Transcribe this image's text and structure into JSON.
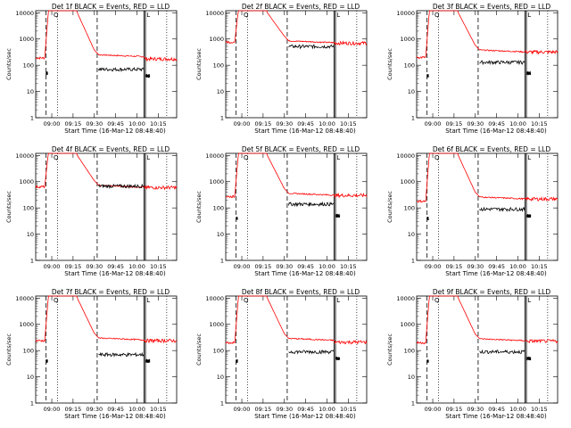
{
  "chart_data": {
    "type": "line",
    "shared": {
      "ylabel": "Counts/sec",
      "xlabel": "Start Time (16-Mar-12 08:48:40)",
      "x_ticks": [
        "09:00",
        "09:15",
        "09:30",
        "09:45",
        "10:00",
        "10:15"
      ],
      "y_ticks": [
        "1",
        "10",
        "100",
        "1000",
        "10000"
      ],
      "yscale": "log",
      "ylim": [
        1,
        12000
      ],
      "xlim": [
        "08:48:40",
        "10:28"
      ],
      "colors": {
        "events": "#000000",
        "lld": "#ff0000"
      },
      "markers": {
        "ql": "Q",
        "ix": "L"
      }
    },
    "panels": [
      {
        "title": "Det 1f BLACK = Events, RED = LLD",
        "series": [
          {
            "values": {
              "base_red": 190,
              "after_red": 250,
              "end_red": 175,
              "black_pre": 50,
              "black_after": 70,
              "black_end": 40
            }
          }
        ]
      },
      {
        "title": "Det 2f BLACK = Events, RED = LLD",
        "series": [
          {
            "values": {
              "base_red": 760,
              "after_red": 850,
              "end_red": 700,
              "black_pre": 0,
              "black_after": 520,
              "black_end": 0
            }
          }
        ]
      },
      {
        "title": "Det 3f BLACK = Events, RED = LLD",
        "series": [
          {
            "values": {
              "base_red": 200,
              "after_red": 380,
              "end_red": 320,
              "black_pre": 40,
              "black_after": 130,
              "black_end": 50
            }
          }
        ]
      },
      {
        "title": "Det 4f BLACK = Events, RED = LLD",
        "series": [
          {
            "values": {
              "base_red": 640,
              "after_red": 720,
              "end_red": 600,
              "black_pre": 0,
              "black_after": 680,
              "black_end": 0
            }
          }
        ]
      },
      {
        "title": "Det 5f BLACK = Events, RED = LLD",
        "series": [
          {
            "values": {
              "base_red": 270,
              "after_red": 360,
              "end_red": 300,
              "black_pre": 40,
              "black_after": 140,
              "black_end": 50
            }
          }
        ]
      },
      {
        "title": "Det 6f BLACK = Events, RED = LLD",
        "series": [
          {
            "values": {
              "base_red": 180,
              "after_red": 260,
              "end_red": 220,
              "black_pre": 40,
              "black_after": 90,
              "black_end": 50
            }
          }
        ]
      },
      {
        "title": "Det 7f BLACK = Events, RED = LLD",
        "series": [
          {
            "values": {
              "base_red": 240,
              "after_red": 300,
              "end_red": 240,
              "black_pre": 40,
              "black_after": 70,
              "black_end": 40
            }
          }
        ]
      },
      {
        "title": "Det 8f BLACK = Events, RED = LLD",
        "series": [
          {
            "values": {
              "base_red": 200,
              "after_red": 290,
              "end_red": 210,
              "black_pre": 40,
              "black_after": 90,
              "black_end": 50
            }
          }
        ]
      },
      {
        "title": "Det 9f BLACK = Events, RED = LLD",
        "series": [
          {
            "values": {
              "base_red": 200,
              "after_red": 280,
              "end_red": 230,
              "black_pre": 40,
              "black_after": 90,
              "black_end": 50
            }
          }
        ]
      }
    ]
  }
}
